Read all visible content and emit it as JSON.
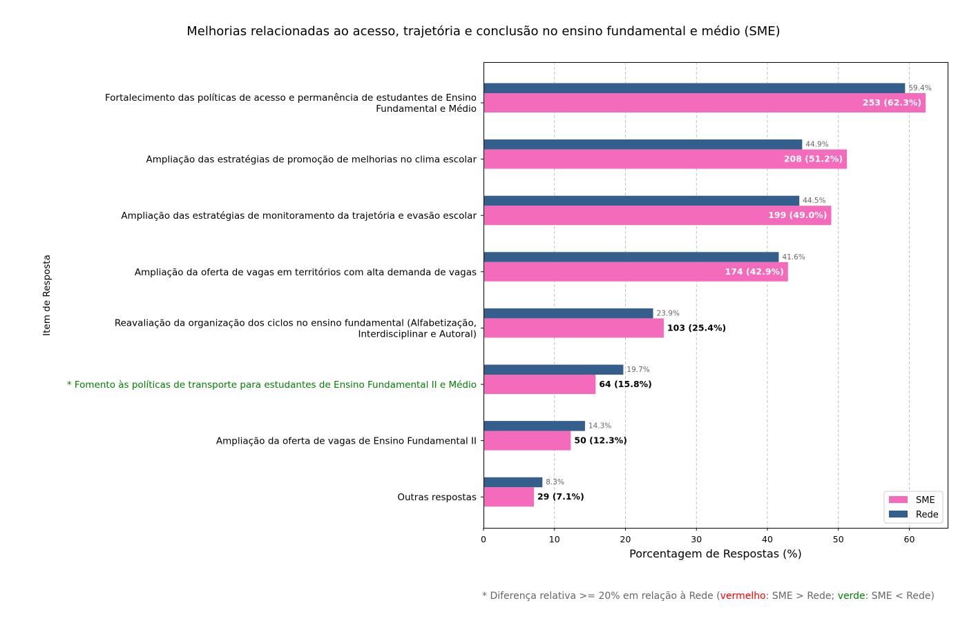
{
  "chart_data": {
    "type": "bar",
    "orientation": "horizontal",
    "title": "Melhorias relacionadas ao acesso, trajetória e conclusão no ensino fundamental e médio (SME)",
    "xlabel": "Porcentagem de Respostas (%)",
    "ylabel": "Item de Resposta",
    "xlim": [
      0,
      65.4
    ],
    "xticks": [
      0,
      10,
      20,
      30,
      40,
      50,
      60
    ],
    "grid": "x-dashed",
    "legend_position": "bottom-right",
    "categories": [
      {
        "lines": [
          "Fortalecimento das políticas de acesso e permanência de estudantes de Ensino",
          "Fundamental e Médio"
        ],
        "highlight": ""
      },
      {
        "lines": [
          "Ampliação das estratégias de promoção de melhorias no clima escolar"
        ],
        "highlight": ""
      },
      {
        "lines": [
          "Ampliação das estratégias de monitoramento da trajetória e evasão escolar"
        ],
        "highlight": ""
      },
      {
        "lines": [
          "Ampliação da oferta de vagas em territórios com alta demanda de vagas"
        ],
        "highlight": ""
      },
      {
        "lines": [
          "Reavaliação da organização dos ciclos no ensino fundamental (Alfabetização,",
          "Interdisciplinar e Autoral)"
        ],
        "highlight": ""
      },
      {
        "lines": [
          "* Fomento às políticas de transporte para estudantes de Ensino Fundamental II e Médio"
        ],
        "highlight": "green"
      },
      {
        "lines": [
          "Ampliação da oferta de vagas de Ensino Fundamental II"
        ],
        "highlight": ""
      },
      {
        "lines": [
          "Outras respostas"
        ],
        "highlight": ""
      }
    ],
    "series": [
      {
        "name": "SME",
        "color": "#f46bbb",
        "values": [
          62.3,
          51.2,
          49.0,
          42.9,
          25.4,
          15.8,
          12.3,
          7.1
        ],
        "labels": [
          "253 (62.3%)",
          "208 (51.2%)",
          "199 (49.0%)",
          "174 (42.9%)",
          "103 (25.4%)",
          "64 (15.8%)",
          "50 (12.3%)",
          "29 (7.1%)"
        ]
      },
      {
        "name": "Rede",
        "color": "#345e8c",
        "values": [
          59.4,
          44.9,
          44.5,
          41.6,
          23.9,
          19.7,
          14.3,
          8.3
        ],
        "labels": [
          "59.4%",
          "44.9%",
          "44.5%",
          "41.6%",
          "23.9%",
          "19.7%",
          "14.3%",
          "8.3%"
        ]
      }
    ]
  },
  "footnote": {
    "part1": "* Diferença relativa >= 20% em relação à Rede (",
    "red_word": "vermelho",
    "part2": ": SME > Rede; ",
    "green_word": "verde",
    "part3": ": SME < Rede)"
  }
}
